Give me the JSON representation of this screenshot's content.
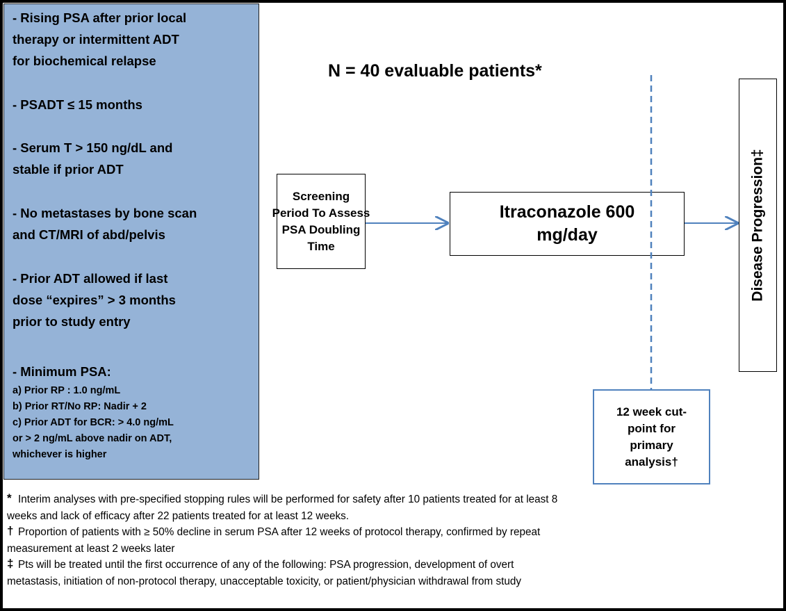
{
  "criteria": [
    {
      "lines": [
        "- Rising PSA after prior local",
        "therapy or intermittent ADT",
        "for biochemical relapse"
      ]
    },
    {
      "lines": [
        "- PSADT ≤ 15 months"
      ]
    },
    {
      "lines": [
        "- Serum T > 150 ng/dL and",
        "stable if prior ADT"
      ]
    },
    {
      "lines": [
        "- No metastases by bone scan",
        "and CT/MRI of abd/pelvis"
      ]
    },
    {
      "lines": [
        "- Prior ADT allowed if last",
        "dose “expires” > 3 months",
        "prior to study entry"
      ]
    }
  ],
  "minimum_psa": {
    "heading": "- Minimum PSA:",
    "lines": [
      "a) Prior RP : 1.0 ng/mL",
      "b) Prior RT/No RP: Nadir + 2",
      "c) Prior ADT for BCR: > 4.0 ng/mL",
      "or > 2 ng/mL above nadir on ADT,",
      "whichever is higher"
    ]
  },
  "title": "N = 40 evaluable patients*",
  "screening": {
    "lines": [
      "Screening",
      "Period To Assess",
      "PSA Doubling",
      "Time"
    ]
  },
  "treatment": {
    "lines": [
      "Itraconazole 600",
      "mg/day"
    ]
  },
  "endpoint": "Disease Progression‡",
  "cutpoint": {
    "lines": [
      "12 week cut-",
      "point for",
      "primary",
      "analysis†"
    ]
  },
  "footnotes": [
    {
      "symbol": "*",
      "lines": [
        "Interim analyses with pre-specified stopping rules will be performed for safety after 10 patients treated for at least 8",
        "weeks and lack of efficacy after 22 patients treated for at least 12 weeks."
      ]
    },
    {
      "symbol": "†",
      "lines": [
        "Proportion of patients with ≥ 50% decline in serum PSA after 12 weeks of protocol therapy, confirmed by repeat",
        "measurement at least 2 weeks later"
      ]
    },
    {
      "symbol": "‡",
      "lines": [
        "Pts will be treated until the first occurrence of any of the following: PSA progression, development of overt",
        "metastasis, initiation of non-protocol therapy, unacceptable toxicity, or patient/physician withdrawal from study"
      ]
    }
  ]
}
